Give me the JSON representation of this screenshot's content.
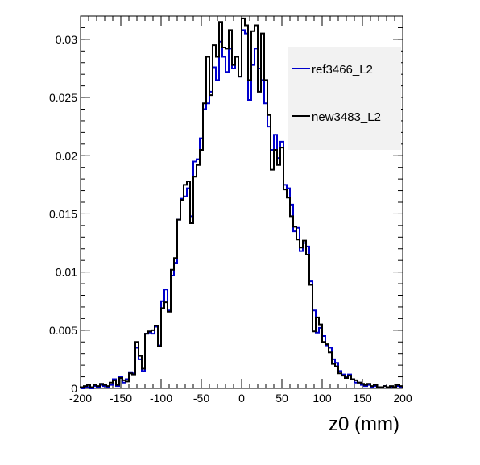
{
  "chart_data": {
    "type": "line",
    "title": "",
    "xlabel": "z0 (mm)",
    "ylabel": "",
    "xlim": [
      -200,
      200
    ],
    "ylim": [
      0,
      0.032
    ],
    "xticks": [
      "-200",
      "-150",
      "-100",
      "-50",
      "0",
      "50",
      "100",
      "150",
      "200"
    ],
    "yticks": [
      "0",
      "0.005",
      "0.01",
      "0.015",
      "0.02",
      "0.025",
      "0.03"
    ],
    "grid": false,
    "legend_position": "top-right",
    "bin_edges_start": -200,
    "bin_width": 4,
    "series": [
      {
        "name": "ref3466_L2",
        "color": "#0000cc",
        "values": [
          0,
          0.0001,
          0.0001,
          0,
          0.0002,
          0.0001,
          0.0003,
          0.0002,
          0.0001,
          0.0003,
          0.0008,
          0.0002,
          0.001,
          0.0005,
          0.0008,
          0.0014,
          0.0013,
          0.0035,
          0.0025,
          0.0015,
          0.0047,
          0.0048,
          0.0047,
          0.0053,
          0.0037,
          0.0075,
          0.0085,
          0.0067,
          0.0097,
          0.0108,
          0.0145,
          0.0163,
          0.0165,
          0.0172,
          0.0148,
          0.0195,
          0.0197,
          0.0215,
          0.024,
          0.0245,
          0.0255,
          0.0276,
          0.0265,
          0.0298,
          0.0285,
          0.0272,
          0.0292,
          0.0275,
          0.0285,
          0.0268,
          0.0308,
          0.0305,
          0.0248,
          0.0278,
          0.0292,
          0.0275,
          0.0265,
          0.0245,
          0.0225,
          0.0205,
          0.0218,
          0.0198,
          0.0212,
          0.0175,
          0.0172,
          0.0158,
          0.0135,
          0.0138,
          0.0118,
          0.0125,
          0.0122,
          0.0092,
          0.0067,
          0.0048,
          0.0052,
          0.0045,
          0.0037,
          0.0035,
          0.0025,
          0.0022,
          0.0015,
          0.0012,
          0.001,
          0.0012,
          0.0008,
          0.0005,
          0.0005,
          0.0003,
          0.0002,
          0.0003,
          0.0001,
          0.0002,
          0.0001,
          0.0001,
          0.0002,
          0.0001,
          0.0001,
          0.0001,
          0.0002,
          0.0001
        ]
      },
      {
        "name": "new3483_L2",
        "color": "#000000",
        "values": [
          0.0001,
          0.0002,
          0.0003,
          0.0001,
          0.0003,
          0.0002,
          0.0004,
          0.0003,
          0.0002,
          0.0005,
          0.0007,
          0.0003,
          0.0009,
          0.0007,
          0.0006,
          0.0013,
          0.0012,
          0.004,
          0.0028,
          0.0017,
          0.0047,
          0.0049,
          0.005,
          0.0054,
          0.0036,
          0.0069,
          0.0074,
          0.0066,
          0.0102,
          0.0112,
          0.0145,
          0.0162,
          0.0175,
          0.0178,
          0.0142,
          0.0182,
          0.0192,
          0.0205,
          0.0245,
          0.0285,
          0.0252,
          0.0295,
          0.0285,
          0.0315,
          0.0293,
          0.0292,
          0.0308,
          0.0278,
          0.0285,
          0.0268,
          0.0318,
          0.0312,
          0.0265,
          0.0307,
          0.0312,
          0.0255,
          0.0305,
          0.0265,
          0.0235,
          0.0188,
          0.0205,
          0.0192,
          0.0207,
          0.0171,
          0.0164,
          0.0148,
          0.0139,
          0.0128,
          0.0121,
          0.0127,
          0.0115,
          0.0089,
          0.0049,
          0.0061,
          0.0055,
          0.004,
          0.0038,
          0.0031,
          0.0021,
          0.0019,
          0.0013,
          0.0011,
          0.0009,
          0.0011,
          0.0008,
          0.0007,
          0.0005,
          0.0004,
          0.0003,
          0.0004,
          0.0002,
          0.0003,
          0.0001,
          0.0001,
          0.0002,
          0.0001,
          0.0002,
          0.0001,
          0.0003,
          0.0002
        ]
      }
    ]
  }
}
